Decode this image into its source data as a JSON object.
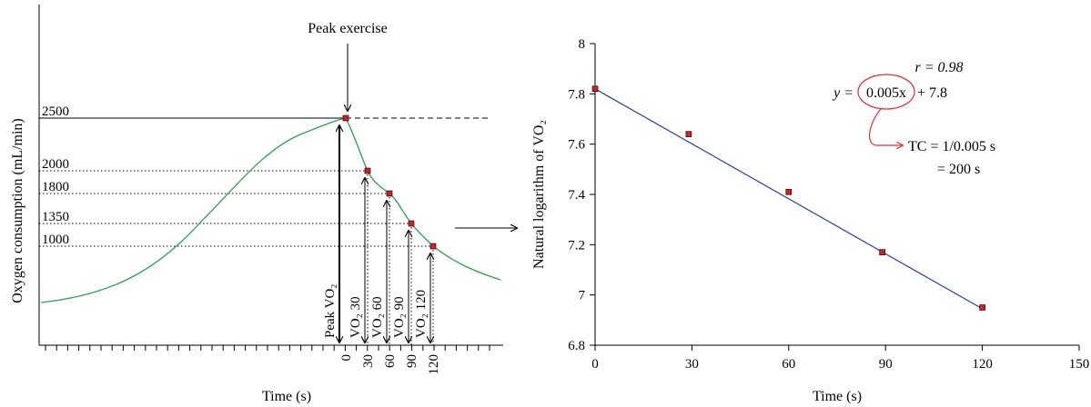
{
  "chart_data": [
    {
      "type": "line",
      "title": "",
      "xlabel": "Time (s)",
      "ylabel": "Oxygen consumption (mL/min)",
      "x_ticks": [
        "0",
        "30",
        "60",
        "90",
        "120"
      ],
      "y_ticks": [
        "2500",
        "2000",
        "1800",
        "1350",
        "1000"
      ],
      "peak_label": "Peak exercise",
      "vo2_labels": [
        "Peak VO₂",
        "VO₂ 30",
        "VO₂ 60",
        "VO₂ 90",
        "VO₂ 120"
      ],
      "recovery_points": [
        {
          "t": 0,
          "vo2": 2500
        },
        {
          "t": 30,
          "vo2": 2000
        },
        {
          "t": 60,
          "vo2": 1800
        },
        {
          "t": 90,
          "vo2": 1350
        },
        {
          "t": 120,
          "vo2": 1000
        }
      ],
      "curve_color": "#2e9e4f",
      "marker_color": "#cc2222"
    },
    {
      "type": "scatter",
      "title": "",
      "xlabel": "Time (s)",
      "ylabel": "Natural logarithm of VO₂",
      "xlim": [
        0,
        150
      ],
      "ylim": [
        6.8,
        8
      ],
      "x_ticks": [
        0,
        30,
        60,
        90,
        120,
        150
      ],
      "y_ticks": [
        6.8,
        7,
        7.2,
        7.4,
        7.6,
        7.8,
        8
      ],
      "y_tick_labels": [
        "6.8",
        "7",
        "7.2",
        "7.4",
        "7.6",
        "7.8",
        "8"
      ],
      "points": [
        {
          "x": 0,
          "y": 7.82
        },
        {
          "x": 29,
          "y": 7.64
        },
        {
          "x": 60,
          "y": 7.41
        },
        {
          "x": 89,
          "y": 7.17
        },
        {
          "x": 120,
          "y": 6.95
        }
      ],
      "fit_line": {
        "x": [
          0,
          120
        ],
        "y": [
          7.82,
          6.945
        ]
      },
      "annotations": {
        "r": "r = 0.98",
        "equation_prefix": "y = ",
        "equation_slope": "0.005x",
        "equation_suffix": "+ 7.8",
        "tc": "TC = 1/0.005 s",
        "tc_result": "= 200 s"
      },
      "line_color": "#2c3e9e",
      "marker_color": "#cc2222",
      "highlight_color": "#e03030",
      "result_color": "#2e9e4f"
    }
  ]
}
